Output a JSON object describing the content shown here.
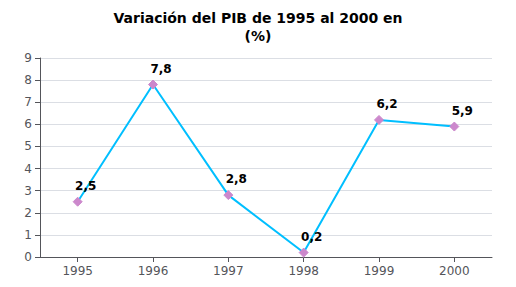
{
  "chart_data": {
    "type": "line",
    "title": "Variación del PIB de 1995 al 2000 en\n(%)",
    "x": [
      1995,
      1996,
      1997,
      1998,
      1999,
      2000
    ],
    "values": [
      2.5,
      7.8,
      2.8,
      0.2,
      6.2,
      5.9
    ],
    "value_labels": [
      "2,5",
      "7,8",
      "2,8",
      "0,2",
      "6,2",
      "5,9"
    ],
    "data_labels": true,
    "color": "#00BFFF",
    "colors": [
      "#CC88CC",
      "#CC88CC",
      "#CC88CC",
      "#CC88CC",
      "#CC88CC",
      "#CC88CC"
    ],
    "marker": "diamond",
    "xlim": [
      1994.5,
      2000.5
    ],
    "xticks": [
      1995,
      1996,
      1997,
      1998,
      1999,
      2000
    ],
    "ylim": [
      0,
      9
    ],
    "yticks": [
      0,
      1,
      2,
      3,
      4,
      5,
      6,
      7,
      8,
      9
    ],
    "grid": true
  }
}
